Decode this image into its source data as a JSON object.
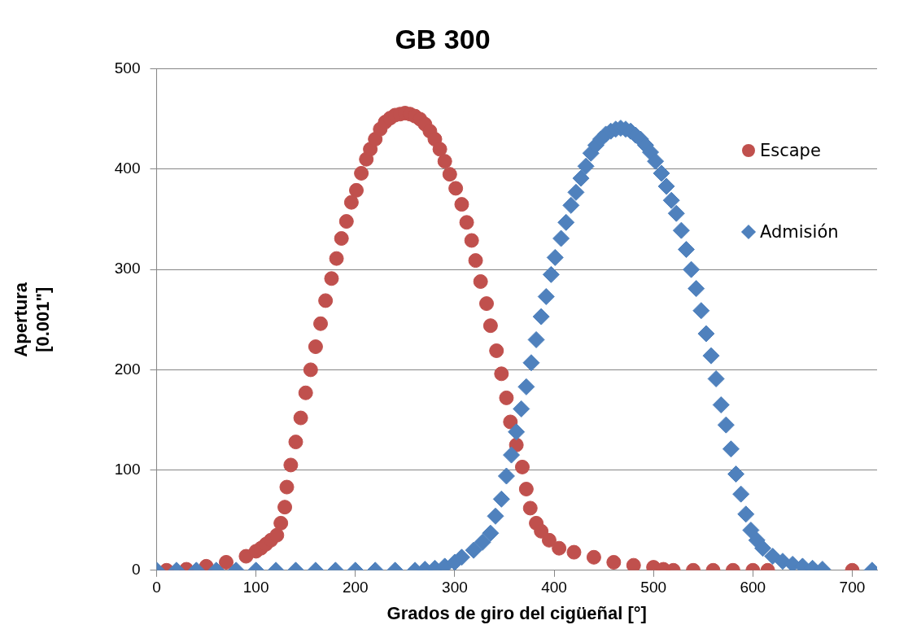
{
  "chart_data": {
    "type": "scatter",
    "title": "GB 300",
    "xlabel": "Grados de giro del cigüeñal [°]",
    "ylabel": "Apertura\n[0.001\"]",
    "xlim": [
      0,
      725
    ],
    "xticks": [
      0,
      100,
      200,
      300,
      400,
      500,
      600,
      700
    ],
    "ylim": [
      0,
      500
    ],
    "yticks": [
      0,
      100,
      200,
      300,
      400,
      500
    ],
    "grid": "y",
    "legend": "top right",
    "series": [
      {
        "name": "Escape",
        "color": "#c0504d",
        "marker": "circle",
        "x": [
          10,
          30,
          50,
          70,
          90,
          100,
          105,
          110,
          115,
          121,
          125,
          129,
          131,
          135,
          140,
          145,
          150,
          155,
          160,
          165,
          170,
          176,
          181,
          186,
          191,
          196,
          201,
          206,
          211,
          215,
          220,
          225,
          230,
          235,
          240,
          245,
          250,
          255,
          260,
          265,
          270,
          275,
          280,
          285,
          290,
          295,
          301,
          307,
          312,
          317,
          321,
          326,
          332,
          336,
          342,
          347,
          352,
          356,
          362,
          368,
          372,
          376,
          382,
          387,
          395,
          405,
          420,
          440,
          460,
          480,
          500,
          510,
          520,
          540,
          560,
          580,
          600,
          615,
          700
        ],
        "values": [
          0,
          1,
          4,
          8,
          14,
          19,
          22,
          26,
          30,
          35,
          47,
          63,
          83,
          105,
          128,
          152,
          177,
          200,
          223,
          246,
          269,
          291,
          311,
          331,
          348,
          367,
          379,
          396,
          410,
          420,
          430,
          440,
          447,
          451,
          454,
          455,
          456,
          455,
          453,
          450,
          445,
          438,
          430,
          420,
          408,
          395,
          381,
          365,
          347,
          329,
          309,
          288,
          266,
          244,
          219,
          196,
          172,
          148,
          125,
          103,
          81,
          62,
          47,
          39,
          30,
          22,
          18,
          13,
          8,
          5,
          3,
          1,
          0,
          0,
          0,
          0,
          0,
          0,
          0
        ]
      },
      {
        "name": "Admisión",
        "color": "#4f81bd",
        "marker": "diamond",
        "x": [
          0,
          20,
          40,
          60,
          80,
          100,
          120,
          140,
          160,
          180,
          200,
          220,
          240,
          260,
          270,
          280,
          290,
          300,
          307,
          319,
          328,
          336,
          341,
          347,
          352,
          357,
          362,
          367,
          372,
          377,
          382,
          387,
          392,
          397,
          401,
          407,
          412,
          417,
          422,
          427,
          432,
          437,
          442,
          447,
          452,
          457,
          462,
          467,
          472,
          477,
          482,
          487,
          492,
          497,
          502,
          508,
          513,
          518,
          523,
          528,
          533,
          538,
          543,
          548,
          553,
          558,
          563,
          568,
          573,
          578,
          583,
          588,
          593,
          598,
          604,
          610,
          620,
          630,
          640,
          650,
          660,
          670,
          720
        ],
        "values": [
          0,
          0,
          0,
          0,
          0,
          0,
          0,
          0,
          0,
          0,
          0,
          0,
          0,
          0,
          1,
          2,
          4,
          8,
          13,
          20,
          28,
          37,
          54,
          71,
          94,
          115,
          138,
          161,
          183,
          207,
          230,
          253,
          273,
          295,
          312,
          331,
          347,
          364,
          377,
          391,
          403,
          416,
          424,
          430,
          435,
          438,
          440,
          441,
          440,
          438,
          434,
          430,
          424,
          417,
          408,
          396,
          383,
          369,
          356,
          339,
          320,
          300,
          281,
          259,
          236,
          214,
          191,
          165,
          145,
          121,
          96,
          76,
          56,
          40,
          30,
          22,
          14,
          9,
          6,
          4,
          2,
          1,
          0
        ]
      }
    ]
  }
}
